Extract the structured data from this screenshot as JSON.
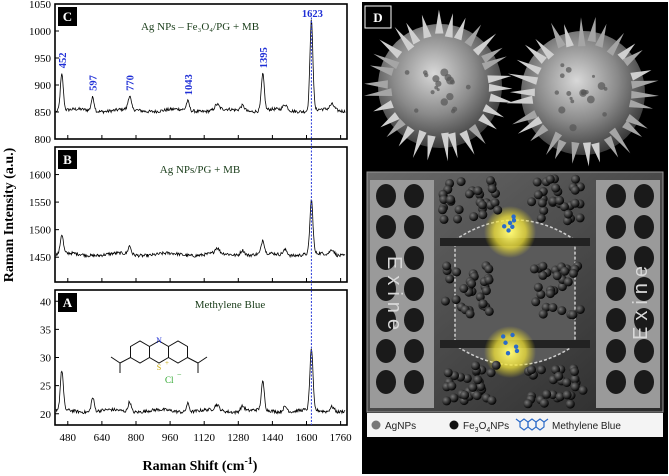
{
  "chart_data": {
    "type": "line",
    "x_axis": {
      "title": "Raman Shift (cm",
      "title_sup": "-1",
      "title_close": ")",
      "ticks": [
        "480",
        "640",
        "800",
        "960",
        "1120",
        "1280",
        "1440",
        "1600",
        "1760"
      ],
      "range": [
        420,
        1790
      ]
    },
    "y_axis_title": "Raman Intensity (a.u.)",
    "marker_line_x": 1623,
    "panels": [
      {
        "letter": "C",
        "title": "Ag NPs – Fe₃O₄/PG + MB",
        "y_range": [
          800,
          1050
        ],
        "y_ticks": [
          "800",
          "850",
          "900",
          "950",
          "1000",
          "1050"
        ],
        "baseline": 853,
        "peaks": [
          {
            "x": 452,
            "y": 920,
            "label": "452"
          },
          {
            "x": 597,
            "y": 878,
            "label": "597"
          },
          {
            "x": 770,
            "y": 878,
            "label": "770"
          },
          {
            "x": 1043,
            "y": 870,
            "label": "1043"
          },
          {
            "x": 1395,
            "y": 920,
            "label": "1395"
          },
          {
            "x": 1623,
            "y": 1020,
            "label": "1623"
          }
        ]
      },
      {
        "letter": "B",
        "title": "Ag NPs/PG + MB",
        "y_range": [
          1405,
          1650
        ],
        "y_ticks": [
          "1450",
          "1500",
          "1550",
          "1600"
        ],
        "baseline": 1455,
        "peaks": [
          {
            "x": 452,
            "y": 1490
          },
          {
            "x": 770,
            "y": 1470
          },
          {
            "x": 1395,
            "y": 1480
          },
          {
            "x": 1623,
            "y": 1553
          }
        ]
      },
      {
        "letter": "A",
        "title": "Methylene Blue",
        "y_range": [
          18,
          42
        ],
        "y_ticks": [
          "20",
          "25",
          "30",
          "35",
          "40"
        ],
        "baseline": 20.5,
        "peaks": [
          {
            "x": 452,
            "y": 27.5
          },
          {
            "x": 597,
            "y": 23
          },
          {
            "x": 770,
            "y": 22.3
          },
          {
            "x": 1043,
            "y": 22
          },
          {
            "x": 1395,
            "y": 25.5
          },
          {
            "x": 1623,
            "y": 31.5
          }
        ]
      }
    ],
    "molecule_labels": {
      "n": "N",
      "s": "S",
      "s_charge": "+",
      "cl": "Cl",
      "cl_charge": "−"
    }
  },
  "panel_d": {
    "letter": "D",
    "exine_left": "Exine",
    "exine_right": "Exine",
    "legend": [
      "AgNPs",
      "Fe",
      "3",
      "O",
      "4",
      "NPs",
      "Methylene Blue"
    ]
  },
  "colors": {
    "peak_label": "#1f2fd6",
    "marker_line": "#2b3bd8",
    "spectrum": "#000000"
  }
}
